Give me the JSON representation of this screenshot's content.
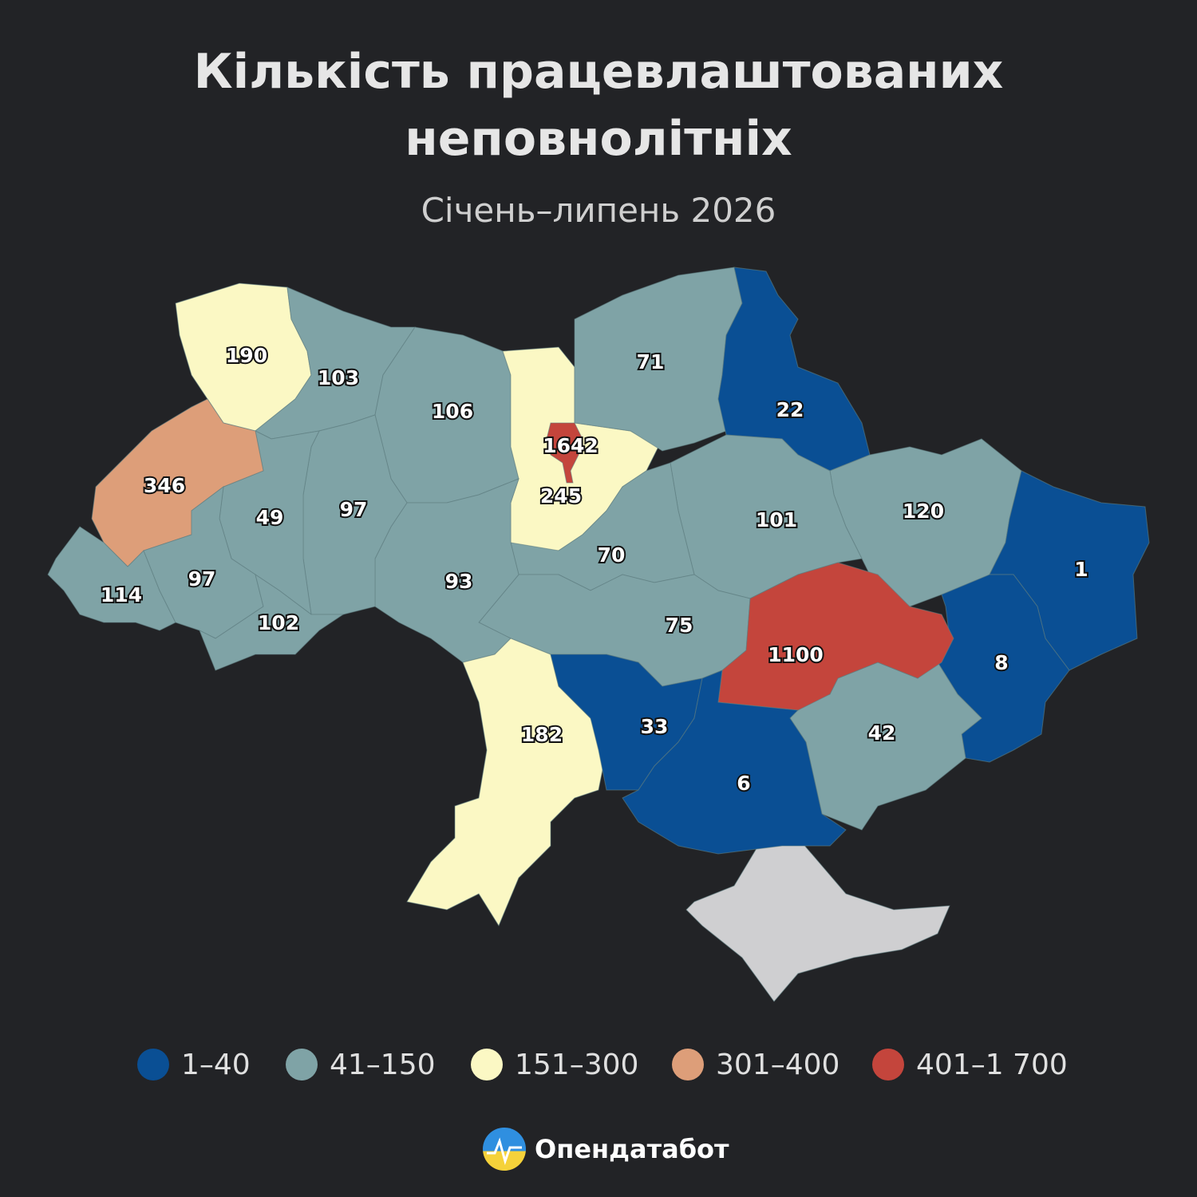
{
  "title": [
    "Кількість працевлаштованих",
    "неповнолітніх"
  ],
  "subtitle": "Січень–липень 2026",
  "map": {
    "values": [
      190,
      103,
      106,
      245,
      1642,
      71,
      22,
      120,
      1,
      8,
      42,
      1100,
      101,
      70,
      75,
      93,
      97,
      49,
      346,
      114,
      97,
      102,
      182,
      33,
      6
    ],
    "no_data_color": "#cfcfd1"
  },
  "legend": [
    {
      "label": "1–40",
      "min": 1,
      "max": 40,
      "color": "#0a4f94"
    },
    {
      "label": "41–150",
      "min": 41,
      "max": 150,
      "color": "#7fa3a6"
    },
    {
      "label": "151–300",
      "min": 151,
      "max": 300,
      "color": "#fbf8c4"
    },
    {
      "label": "301–400",
      "min": 301,
      "max": 400,
      "color": "#dd9e79"
    },
    {
      "label": "401–1 700",
      "min": 401,
      "max": 1700,
      "color": "#c4453c"
    }
  ],
  "brand": "Опендатабот"
}
